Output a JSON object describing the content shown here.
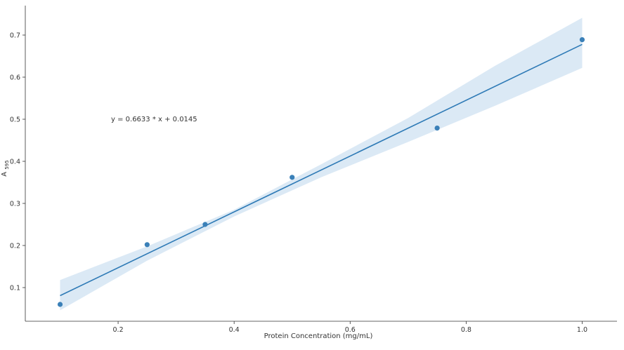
{
  "chart_data": {
    "type": "scatter",
    "title": "",
    "xlabel": "Protein Concentration (mg/mL)",
    "ylabel": "A",
    "ylabel_subscript": "595",
    "xlim": [
      0.04,
      1.06
    ],
    "ylim": [
      0.02,
      0.77
    ],
    "x_ticks": [
      0.2,
      0.4,
      0.6,
      0.8,
      1.0
    ],
    "x_tick_labels": [
      "0.2",
      "0.4",
      "0.6",
      "0.8",
      "1.0"
    ],
    "y_ticks": [
      0.1,
      0.2,
      0.3,
      0.4,
      0.5,
      0.6,
      0.7
    ],
    "y_tick_labels": [
      "0.1",
      "0.2",
      "0.3",
      "0.4",
      "0.5",
      "0.6",
      "0.7"
    ],
    "grid": false,
    "series": [
      {
        "x": [
          0.1,
          0.25,
          0.35,
          0.5,
          0.75,
          1.0
        ],
        "y": [
          0.06,
          0.202,
          0.25,
          0.362,
          0.479,
          0.689
        ]
      }
    ],
    "fit": {
      "slope": 0.6633,
      "intercept": 0.0145,
      "x_range": [
        0.1,
        1.0
      ],
      "ci_band": {
        "x": [
          0.1,
          0.25,
          0.4,
          0.55,
          0.7,
          0.85,
          1.0
        ],
        "lower": [
          0.046,
          0.164,
          0.269,
          0.362,
          0.446,
          0.532,
          0.622
        ],
        "upper": [
          0.118,
          0.198,
          0.285,
          0.393,
          0.503,
          0.627,
          0.741
        ]
      }
    },
    "annotation": "y = 0.6633 * x + 0.0145",
    "colors": {
      "points": "#3a80b8",
      "line": "#2e7ab6",
      "band": "#cfe1f1",
      "axes": "#333333"
    }
  }
}
